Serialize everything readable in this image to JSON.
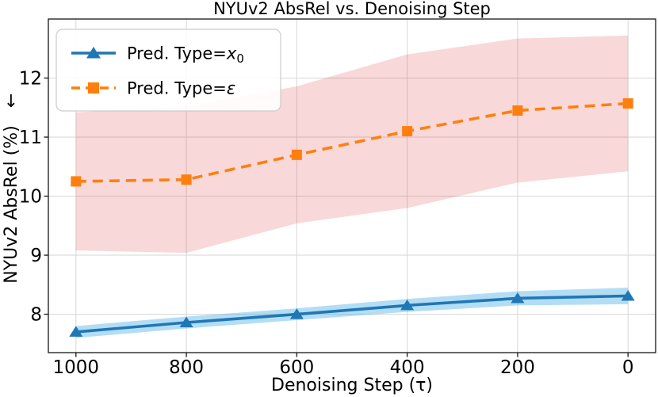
{
  "chart_data": {
    "type": "line",
    "title": "NYUv2 AbsRel vs. Denoising Step",
    "xlabel": "Denoising Step (τ)",
    "ylabel": "NYUv2 AbsRel (%) ↓",
    "ylabel_arrow": "↓",
    "x_tick_labels": [
      "1000",
      "800",
      "600",
      "400",
      "200",
      "0"
    ],
    "y_tick_labels": [
      "8",
      "9",
      "10",
      "11",
      "12"
    ],
    "x_tick_values": [
      1000,
      800,
      600,
      400,
      200,
      0
    ],
    "y_tick_values": [
      8,
      9,
      10,
      11,
      12
    ],
    "x": [
      1000,
      800,
      600,
      400,
      200,
      0
    ],
    "xlim": [
      1050,
      -50
    ],
    "ylim": [
      7.35,
      13.0
    ],
    "x_axis_reversed": true,
    "grid": true,
    "legend_position": "upper-left",
    "series": [
      {
        "name": "Pred. Type=x₀",
        "label_prefix": "Pred. Type=",
        "label_var": "x",
        "label_sub": "0",
        "color": "#1f77b4",
        "band_color": "rgba(86, 180, 233, 0.45)",
        "line_style": "solid",
        "marker": "triangle-up",
        "values": [
          7.7,
          7.86,
          8.0,
          8.15,
          8.27,
          8.31
        ],
        "band_halfwidth": [
          0.1,
          0.1,
          0.1,
          0.11,
          0.12,
          0.14
        ]
      },
      {
        "name": "Pred. Type=ε",
        "label_prefix": "Pred. Type=",
        "label_var": "ε",
        "label_sub": "",
        "color": "#ff7f0e",
        "band_color": "rgba(214, 39, 40, 0.18)",
        "line_style": "dashed",
        "marker": "square",
        "values": [
          10.25,
          10.28,
          10.7,
          11.1,
          11.45,
          11.57
        ],
        "band_halfwidth": [
          1.17,
          1.24,
          1.16,
          1.3,
          1.22,
          1.15
        ]
      }
    ]
  }
}
